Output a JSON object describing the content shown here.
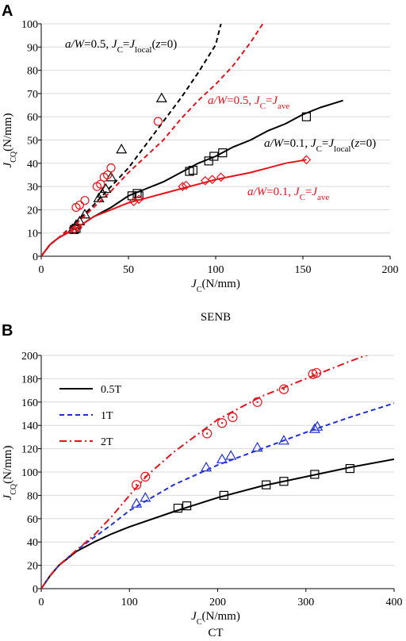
{
  "colors": {
    "black": "#000000",
    "red": "#e8121b",
    "blue": "#1f2fd8"
  },
  "chart_data": [
    {
      "panel_label": "A",
      "type": "line",
      "caption": "SENB",
      "xlabel_main": "J",
      "xlabel_sub": "C",
      "xlabel_unit": "(N/mm)",
      "ylabel_main": "J",
      "ylabel_sub": "CQ",
      "ylabel_unit": "(N/mm)",
      "xlim": [
        0,
        200
      ],
      "ylim": [
        0,
        100
      ],
      "xticks": [
        0,
        50,
        100,
        150,
        200
      ],
      "yticks": [
        0,
        10,
        20,
        30,
        40,
        50,
        60,
        70,
        80,
        90,
        100
      ],
      "series": [
        {
          "color": "#000000",
          "dash": "dashed",
          "marker": "triangle",
          "line": {
            "x": [
              0,
              5,
              10,
              20,
              30,
              40,
              50,
              60,
              68,
              80,
              90,
              100,
              103
            ],
            "y": [
              0,
              5,
              8,
              14.5,
              22,
              30,
              38,
              48,
              56,
              68,
              79,
              91,
              100
            ]
          },
          "markers": {
            "x": [
              18,
              20,
              22,
              25,
              33,
              35,
              37,
              40,
              46,
              69
            ],
            "y": [
              11.5,
              13.5,
              15,
              18,
              25,
              27,
              29,
              34,
              46,
              68
            ]
          },
          "label_parts": [
            {
              "t": "a/W",
              "s": "i"
            },
            {
              "t": "=0.5, "
            },
            {
              "t": "J",
              "s": "i"
            },
            {
              "t": "C",
              "s": "sub"
            },
            {
              "t": "="
            },
            {
              "t": "J",
              "s": "i"
            },
            {
              "t": "local",
              "s": "sub"
            },
            {
              "t": "("
            },
            {
              "t": "z",
              "s": "i"
            },
            {
              "t": "=0)"
            }
          ]
        },
        {
          "color": "#e8121b",
          "dash": "dashed",
          "marker": "circle",
          "line": {
            "x": [
              0,
              5,
              10,
              20,
              30,
              40,
              50,
              60,
              70,
              80,
              90,
              100,
              110,
              120,
              127
            ],
            "y": [
              0,
              5,
              8,
              14,
              21,
              28,
              36,
              43,
              50,
              59,
              67,
              74,
              82,
              92,
              100
            ]
          },
          "markers": {
            "x": [
              20,
              22,
              25,
              32,
              34,
              36,
              38,
              40,
              67
            ],
            "y": [
              21,
              22,
              24,
              30,
              31,
              34,
              35,
              38,
              58
            ]
          },
          "label_parts": [
            {
              "t": "a/W",
              "s": "i"
            },
            {
              "t": "=0.5, "
            },
            {
              "t": "J",
              "s": "i"
            },
            {
              "t": "C",
              "s": "sub"
            },
            {
              "t": "="
            },
            {
              "t": "J",
              "s": "i"
            },
            {
              "t": "ave",
              "s": "sub"
            }
          ]
        },
        {
          "color": "#000000",
          "dash": "solid",
          "marker": "square",
          "line": {
            "x": [
              0,
              5,
              10,
              20,
              30,
              40,
              50,
              60,
              70,
              80,
              90,
              100,
              110,
              120,
              130,
              140,
              150,
              160,
              173
            ],
            "y": [
              0,
              5,
              8,
              12,
              17,
              21,
              26,
              29,
              32,
              36,
              40,
              43,
              47,
              50,
              54,
              57,
              61,
              64,
              67
            ]
          },
          "markers": {
            "x": [
              19,
              20,
              52,
              55,
              56,
              85,
              87,
              96,
              99,
              104,
              152
            ],
            "y": [
              11.5,
              12,
              26,
              27,
              26,
              36.5,
              37,
              41,
              43,
              44.5,
              60
            ]
          },
          "label_parts": [
            {
              "t": "a/W",
              "s": "i"
            },
            {
              "t": "=0.1, "
            },
            {
              "t": "J",
              "s": "i"
            },
            {
              "t": "C",
              "s": "sub"
            },
            {
              "t": "="
            },
            {
              "t": "J",
              "s": "i"
            },
            {
              "t": "local",
              "s": "sub"
            },
            {
              "t": "("
            },
            {
              "t": "z",
              "s": "i"
            },
            {
              "t": "=0)"
            }
          ]
        },
        {
          "color": "#e8121b",
          "dash": "solid",
          "marker": "diamond",
          "line": {
            "x": [
              0,
              5,
              10,
              20,
              30,
              40,
              50,
              60,
              70,
              80,
              90,
              100,
              110,
              120,
              130,
              140,
              152
            ],
            "y": [
              0,
              5,
              8,
              12,
              17,
              20,
              23,
              25,
              27,
              29,
              31,
              33,
              34.5,
              36,
              38,
              40,
              41.5
            ]
          },
          "markers": {
            "x": [
              19,
              21,
              53,
              56,
              81,
              83,
              94,
              98,
              103,
              152
            ],
            "y": [
              11.5,
              12.5,
              23.5,
              24.5,
              30,
              30.5,
              32.5,
              33,
              34,
              41.5
            ]
          },
          "label_parts": [
            {
              "t": "a/W",
              "s": "i"
            },
            {
              "t": "=0.1, "
            },
            {
              "t": "J",
              "s": "i"
            },
            {
              "t": "C",
              "s": "sub"
            },
            {
              "t": "="
            },
            {
              "t": "J",
              "s": "i"
            },
            {
              "t": "ave",
              "s": "sub"
            }
          ]
        }
      ]
    },
    {
      "panel_label": "B",
      "type": "line",
      "caption": "CT",
      "xlabel_main": "J",
      "xlabel_sub": "C",
      "xlabel_unit": "(N/mm)",
      "ylabel_main": "J",
      "ylabel_sub": "CQ",
      "ylabel_unit": "(N/mm)",
      "xlim": [
        0,
        400
      ],
      "ylim": [
        0,
        200
      ],
      "xticks": [
        0,
        100,
        200,
        300,
        400
      ],
      "yticks": [
        0,
        20,
        40,
        60,
        80,
        100,
        120,
        140,
        160,
        180,
        200
      ],
      "legend_position": "top-left",
      "series": [
        {
          "name": "0.5T",
          "color": "#000000",
          "dash": "solid",
          "marker": "square",
          "line": {
            "x": [
              0,
              10,
              20,
              40,
              60,
              80,
              100,
              150,
              200,
              250,
              300,
              350,
              400
            ],
            "y": [
              0,
              11,
              20,
              32,
              40,
              47,
              53,
              66,
              78,
              88,
              96,
              104,
              111
            ]
          },
          "markers": {
            "x": [
              155,
              165,
              207,
              255,
              275,
              310,
              350
            ],
            "y": [
              69,
              71,
              80,
              89,
              92,
              98,
              103
            ]
          }
        },
        {
          "name": "1T",
          "color": "#1f2fd8",
          "dash": "dashed",
          "marker": "triangle",
          "line": {
            "x": [
              0,
              10,
              20,
              40,
              60,
              80,
              100,
              150,
              200,
              250,
              300,
              350,
              400
            ],
            "y": [
              0,
              11,
              20,
              33,
              44,
              55,
              67,
              89,
              106,
              120,
              134,
              147,
              159
            ]
          },
          "markers": {
            "x": [
              108,
              118,
              187,
              205,
              215,
              245,
              275,
              310,
              313
            ],
            "y": [
              73,
              78,
              104,
              111,
              114,
              121,
              127,
              137,
              139
            ]
          }
        },
        {
          "name": "2T",
          "color": "#e8121b",
          "dash": "dashdot",
          "marker": "circle-dot",
          "line": {
            "x": [
              0,
              10,
              20,
              40,
              60,
              80,
              100,
              120,
              150,
              200,
              250,
              300,
              350,
              372
            ],
            "y": [
              0,
              11,
              20,
              33,
              46,
              62,
              80,
              97,
              117,
              145,
              165,
              180,
              195,
              201
            ]
          },
          "markers": {
            "x": [
              108,
              118,
              188,
              205,
              217,
              245,
              275,
              308,
              312
            ],
            "y": [
              89,
              96,
              133,
              142,
              147,
              160,
              171,
              184,
              185
            ]
          }
        }
      ]
    }
  ]
}
